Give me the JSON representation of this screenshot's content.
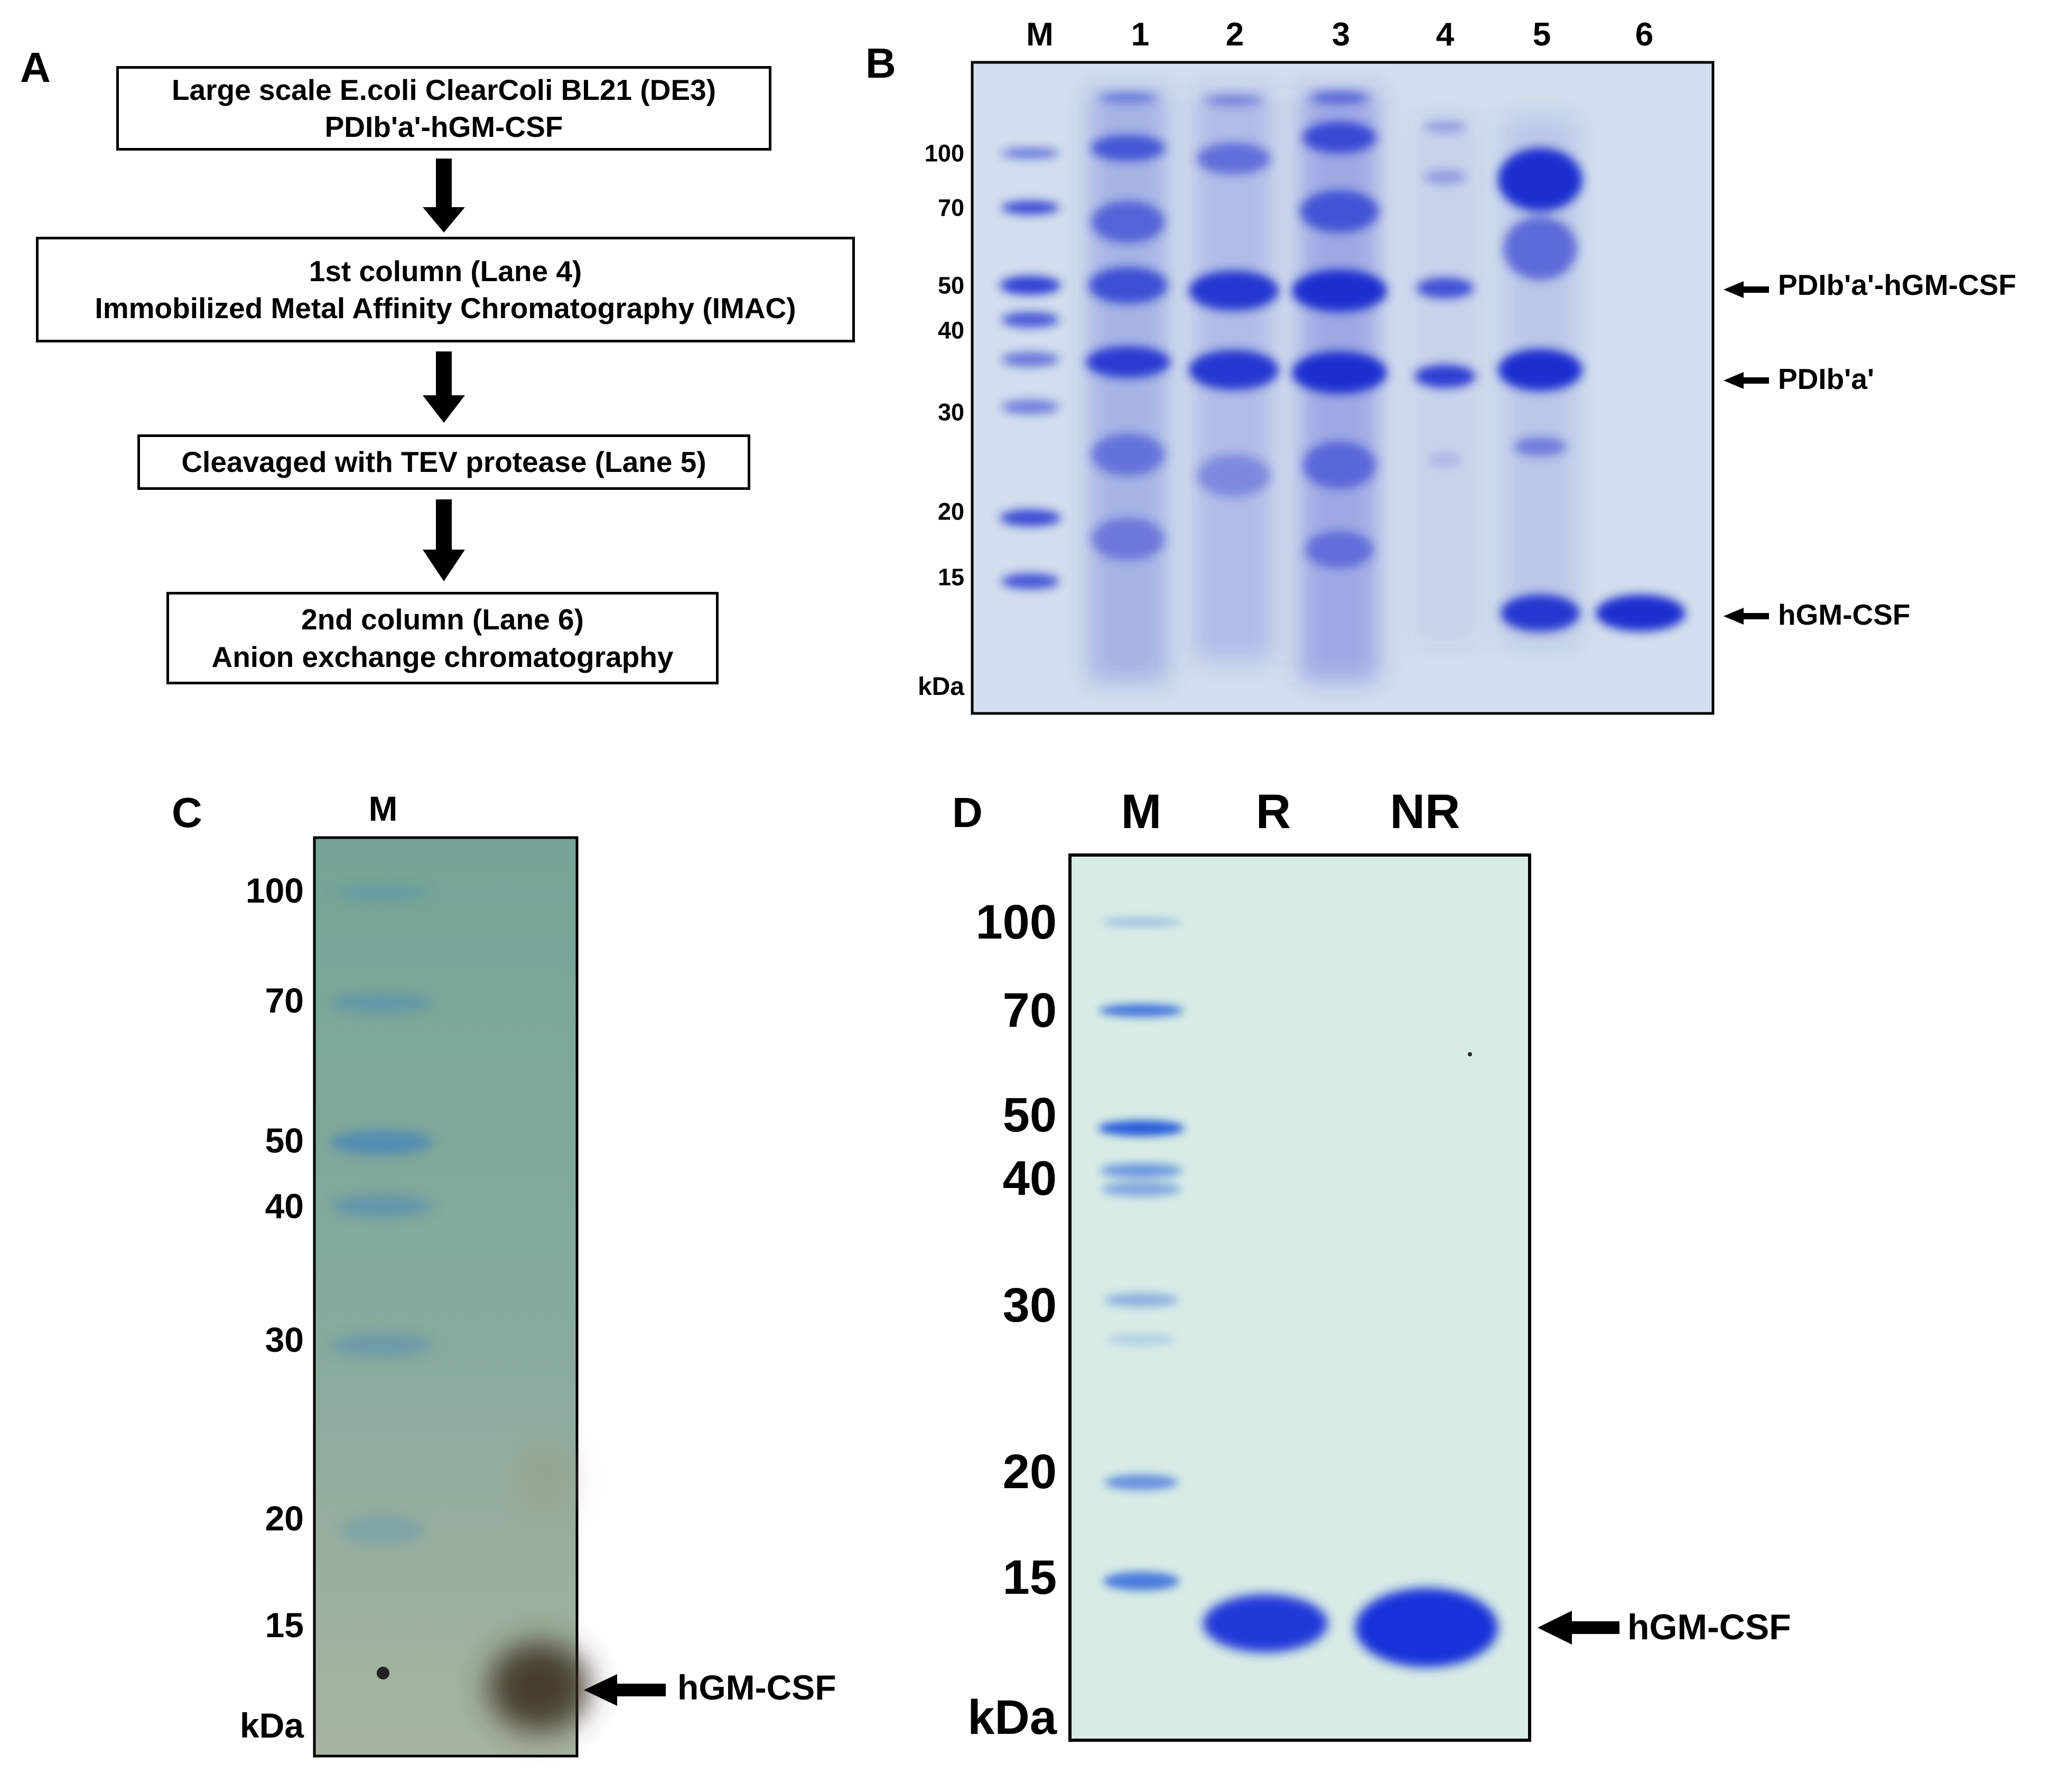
{
  "panels": {
    "A": {
      "letter": "A",
      "steps": [
        {
          "line1": "Large scale E.coli ClearColi BL21 (DE3)",
          "line2": "PDIb'a'-hGM-CSF"
        },
        {
          "line1": "1st column (Lane 4)",
          "line2": "Immobilized Metal Affinity Chromatography (IMAC)"
        },
        {
          "line1": "Cleavaged with TEV protease (Lane 5)",
          "line2": ""
        },
        {
          "line1": "2nd column (Lane 6)",
          "line2": "Anion exchange chromatography"
        }
      ]
    },
    "B": {
      "letter": "B",
      "lanes": [
        "M",
        "1",
        "2",
        "3",
        "4",
        "5",
        "6"
      ],
      "markers": [
        "100",
        "70",
        "50",
        "40",
        "30",
        "20",
        "15"
      ],
      "unit": "kDa",
      "band_labels": [
        "PDIb'a'-hGM-CSF",
        "PDIb'a'",
        "hGM-CSF"
      ],
      "gel_color": "#d3dfee",
      "stain_color": "#1e2fcf"
    },
    "C": {
      "letter": "C",
      "lanes": [
        "M"
      ],
      "markers": [
        "100",
        "70",
        "50",
        "40",
        "30",
        "20",
        "15"
      ],
      "unit": "kDa",
      "band_label": "hGM-CSF",
      "gel_color": "#7fa696"
    },
    "D": {
      "letter": "D",
      "lanes": [
        "M",
        "R",
        "NR"
      ],
      "markers": [
        "100",
        "70",
        "50",
        "40",
        "30",
        "20",
        "15"
      ],
      "unit": "kDa",
      "band_label": "hGM-CSF",
      "gel_color": "#d8ece6",
      "stain_color": "#1430d8"
    }
  }
}
